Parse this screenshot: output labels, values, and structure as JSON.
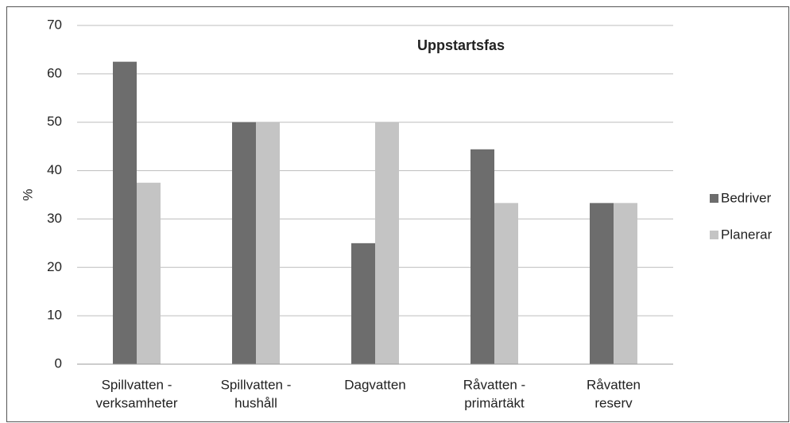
{
  "chart_data": {
    "type": "bar",
    "title": "Uppstartsfas",
    "y_label": "%",
    "categories": [
      [
        "Spillvatten -",
        "verksamheter"
      ],
      [
        "Spillvatten -",
        "hushåll"
      ],
      [
        "Dagvatten"
      ],
      [
        "Råvatten -",
        "primärtäkt"
      ],
      [
        "Råvatten",
        "reserv"
      ]
    ],
    "series": [
      {
        "name": "Bedriver",
        "color": "#6d6d6d",
        "values": [
          62.5,
          50,
          25,
          44.4,
          33.3
        ]
      },
      {
        "name": "Planerar",
        "color": "#c4c4c4",
        "values": [
          37.5,
          50,
          50,
          33.3,
          33.3
        ]
      }
    ],
    "ylim": [
      0,
      70
    ],
    "yticks": [
      0,
      10,
      20,
      30,
      40,
      50,
      60,
      70
    ],
    "grid": true,
    "legend": "right"
  }
}
